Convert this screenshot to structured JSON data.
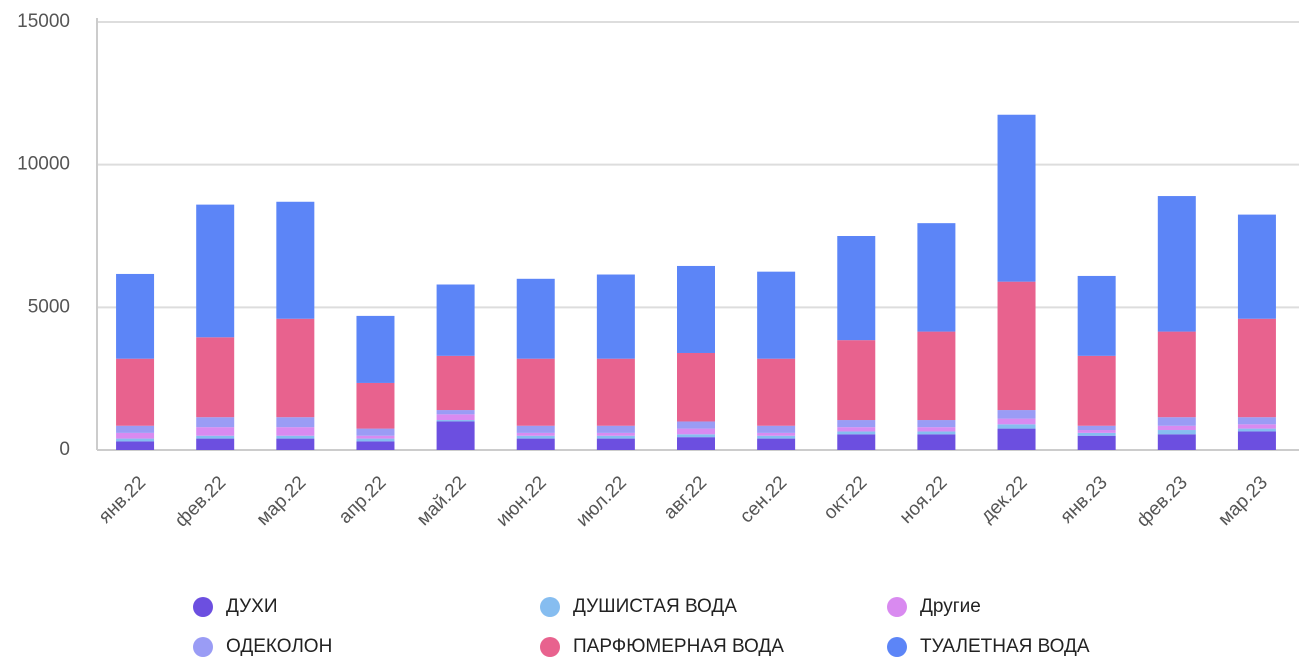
{
  "chart_data": {
    "type": "bar",
    "stacked": true,
    "categories": [
      "янв.22",
      "фев.22",
      "мар.22",
      "апр.22",
      "май.22",
      "июн.22",
      "июл.22",
      "авг.22",
      "сен.22",
      "окт.22",
      "ноя.22",
      "дек.22",
      "янв.23",
      "фев.23",
      "мар.23"
    ],
    "series": [
      {
        "name": "ДУХИ",
        "color": "#6c4fe0",
        "values": [
          300,
          400,
          400,
          300,
          1000,
          400,
          400,
          450,
          400,
          550,
          550,
          750,
          500,
          550,
          650
        ]
      },
      {
        "name": "ДУШИСТАЯ ВОДА",
        "color": "#86bdf0",
        "values": [
          100,
          100,
          100,
          100,
          50,
          100,
          100,
          100,
          100,
          100,
          100,
          150,
          100,
          150,
          100
        ]
      },
      {
        "name": "Другие",
        "color": "#d98af0",
        "values": [
          200,
          300,
          300,
          100,
          200,
          100,
          100,
          200,
          100,
          150,
          150,
          200,
          100,
          150,
          150
        ]
      },
      {
        "name": "ОДЕКОЛОН",
        "color": "#9a9cf5",
        "values": [
          250,
          350,
          350,
          250,
          150,
          250,
          250,
          250,
          250,
          250,
          250,
          300,
          150,
          300,
          250
        ]
      },
      {
        "name": "ПАРФЮМЕРНАЯ ВОДА",
        "color": "#e8628e",
        "values": [
          2350,
          2800,
          3450,
          1600,
          1900,
          2350,
          2350,
          2400,
          2350,
          2800,
          3100,
          4500,
          2450,
          3000,
          3450
        ]
      },
      {
        "name": "ТУАЛЕТНАЯ ВОДА",
        "color": "#5c85f7",
        "values": [
          2970,
          4650,
          4100,
          2350,
          2500,
          2800,
          2950,
          3050,
          3050,
          3650,
          3800,
          5850,
          2800,
          4750,
          3650
        ]
      }
    ],
    "ylim": [
      0,
      15000
    ],
    "yticks": [
      0,
      5000,
      10000,
      15000
    ],
    "grid": true
  }
}
